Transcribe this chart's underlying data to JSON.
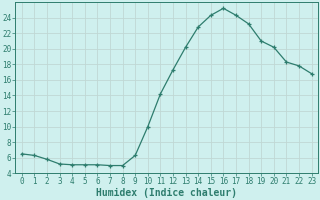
{
  "x": [
    0,
    1,
    2,
    3,
    4,
    5,
    6,
    7,
    8,
    9,
    10,
    11,
    12,
    13,
    14,
    15,
    16,
    17,
    18,
    19,
    20,
    21,
    22,
    23
  ],
  "y": [
    6.5,
    6.3,
    5.8,
    5.2,
    5.1,
    5.1,
    5.1,
    5.0,
    5.0,
    6.3,
    10.0,
    14.2,
    17.3,
    20.2,
    22.8,
    24.3,
    25.2,
    24.3,
    23.2,
    21.0,
    20.2,
    18.3,
    17.8,
    16.8
  ],
  "line_color": "#2e7d6e",
  "marker": "+",
  "markersize": 3.5,
  "linewidth": 0.9,
  "bg_color": "#cff0ee",
  "grid_color": "#c0d8d4",
  "xlabel": "Humidex (Indice chaleur)",
  "xlim": [
    -0.5,
    23.5
  ],
  "ylim": [
    4,
    26
  ],
  "yticks": [
    4,
    6,
    8,
    10,
    12,
    14,
    16,
    18,
    20,
    22,
    24
  ],
  "xticks": [
    0,
    1,
    2,
    3,
    4,
    5,
    6,
    7,
    8,
    9,
    10,
    11,
    12,
    13,
    14,
    15,
    16,
    17,
    18,
    19,
    20,
    21,
    22,
    23
  ],
  "tick_fontsize": 5.5,
  "label_fontsize": 7.0,
  "tick_color": "#2e7d6e",
  "spine_color": "#2e7d6e"
}
